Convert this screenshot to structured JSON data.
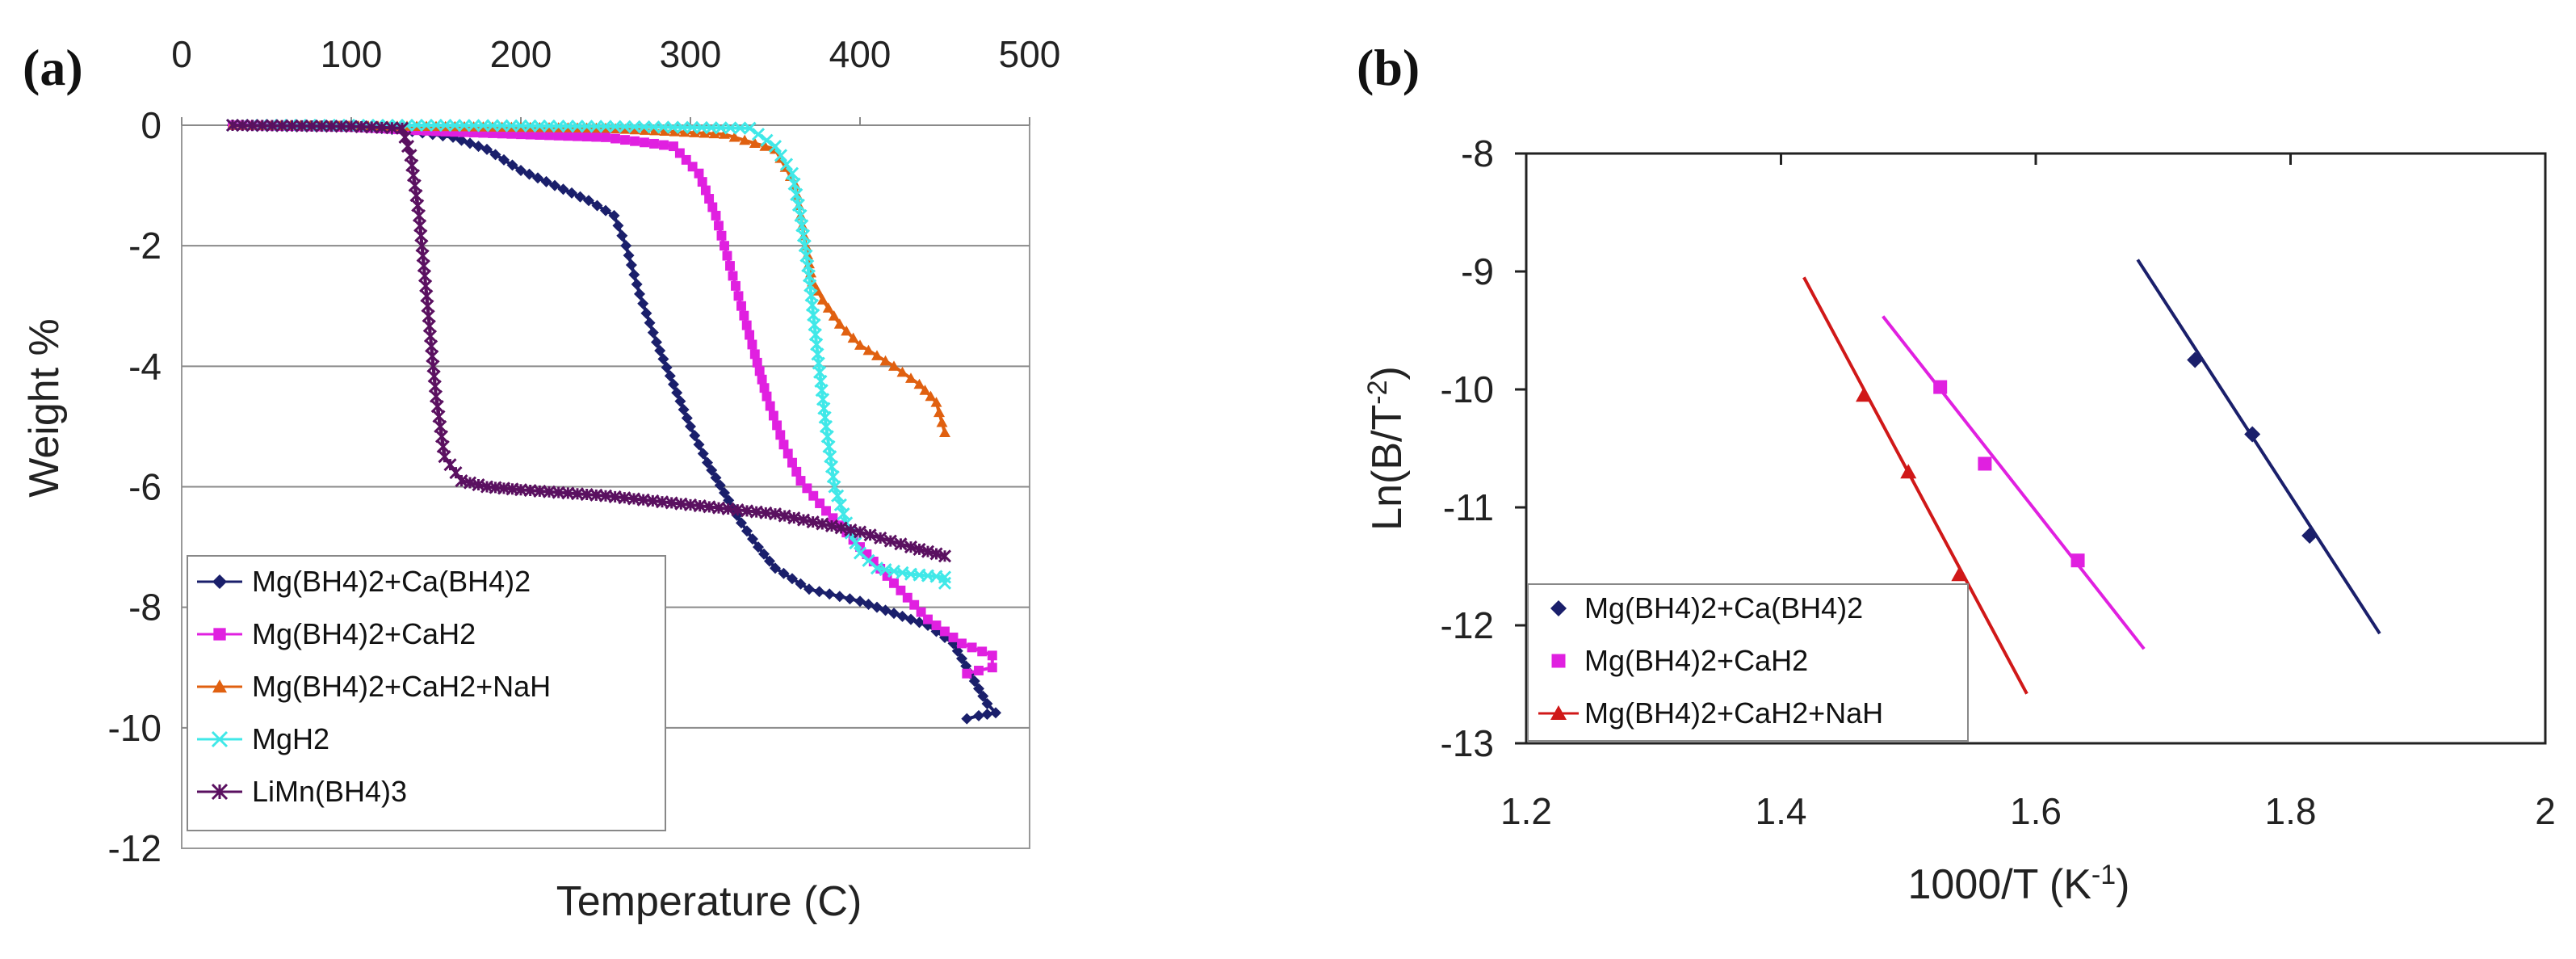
{
  "chart_data": [
    {
      "id": "a",
      "type": "line",
      "panel_label": "(a)",
      "xlabel": "Temperature (C)",
      "ylabel": "Weight %",
      "xlim": [
        0,
        500
      ],
      "ylim": [
        -12,
        0
      ],
      "x_ticks": [
        0,
        100,
        200,
        300,
        400,
        500
      ],
      "x_tick_labels": [
        "0",
        "100",
        "200",
        "300",
        "400",
        "500"
      ],
      "x_axis_position": "top",
      "y_ticks": [
        0,
        -2,
        -4,
        -6,
        -8,
        -10,
        -12
      ],
      "y_tick_labels": [
        "0",
        "-2",
        "-4",
        "-6",
        "-8",
        "-10",
        "-12"
      ],
      "legend_position": "bottom-left",
      "series": [
        {
          "name": "Mg(BH4)2+Ca(BH4)2",
          "color": "#1a1f6b",
          "marker": "diamond",
          "points": [
            [
              30,
              0
            ],
            [
              100,
              -0.02
            ],
            [
              130,
              -0.08
            ],
            [
              160,
              -0.2
            ],
            [
              180,
              -0.4
            ],
            [
              200,
              -0.75
            ],
            [
              220,
              -1.0
            ],
            [
              240,
              -1.25
            ],
            [
              255,
              -1.5
            ],
            [
              262,
              -2.0
            ],
            [
              270,
              -2.8
            ],
            [
              280,
              -3.6
            ],
            [
              290,
              -4.3
            ],
            [
              300,
              -5.0
            ],
            [
              310,
              -5.6
            ],
            [
              320,
              -6.1
            ],
            [
              330,
              -6.6
            ],
            [
              340,
              -7.0
            ],
            [
              350,
              -7.35
            ],
            [
              370,
              -7.7
            ],
            [
              400,
              -7.9
            ],
            [
              420,
              -8.1
            ],
            [
              440,
              -8.3
            ],
            [
              455,
              -8.6
            ],
            [
              465,
              -9.1
            ],
            [
              475,
              -9.6
            ],
            [
              480,
              -9.75
            ],
            [
              470,
              -9.8
            ],
            [
              463,
              -9.85
            ]
          ]
        },
        {
          "name": "Mg(BH4)2+CaH2",
          "color": "#e020e0",
          "marker": "square",
          "points": [
            [
              30,
              0
            ],
            [
              100,
              -0.03
            ],
            [
              150,
              -0.1
            ],
            [
              200,
              -0.15
            ],
            [
              250,
              -0.2
            ],
            [
              290,
              -0.35
            ],
            [
              305,
              -0.8
            ],
            [
              315,
              -1.5
            ],
            [
              325,
              -2.5
            ],
            [
              330,
              -3.0
            ],
            [
              338,
              -3.8
            ],
            [
              345,
              -4.5
            ],
            [
              355,
              -5.3
            ],
            [
              365,
              -5.9
            ],
            [
              380,
              -6.4
            ],
            [
              400,
              -7.0
            ],
            [
              420,
              -7.6
            ],
            [
              440,
              -8.2
            ],
            [
              460,
              -8.6
            ],
            [
              478,
              -8.8
            ],
            [
              478,
              -9.0
            ],
            [
              470,
              -9.05
            ],
            [
              463,
              -9.1
            ]
          ]
        },
        {
          "name": "Mg(BH4)2+CaH2+NaH",
          "color": "#e06010",
          "marker": "triangle",
          "points": [
            [
              30,
              0
            ],
            [
              150,
              -0.02
            ],
            [
              250,
              -0.05
            ],
            [
              320,
              -0.15
            ],
            [
              350,
              -0.4
            ],
            [
              362,
              -1.0
            ],
            [
              368,
              -2.0
            ],
            [
              372,
              -2.6
            ],
            [
              378,
              -2.9
            ],
            [
              388,
              -3.3
            ],
            [
              400,
              -3.65
            ],
            [
              420,
              -4.0
            ],
            [
              435,
              -4.3
            ],
            [
              445,
              -4.6
            ],
            [
              450,
              -5.1
            ]
          ]
        },
        {
          "name": "MgH2",
          "color": "#40e8e8",
          "marker": "x",
          "points": [
            [
              30,
              0
            ],
            [
              150,
              0
            ],
            [
              250,
              -0.02
            ],
            [
              335,
              -0.05
            ],
            [
              350,
              -0.35
            ],
            [
              360,
              -0.8
            ],
            [
              365,
              -1.5
            ],
            [
              370,
              -2.5
            ],
            [
              375,
              -3.8
            ],
            [
              380,
              -5.0
            ],
            [
              385,
              -6.0
            ],
            [
              392,
              -6.6
            ],
            [
              400,
              -7.1
            ],
            [
              410,
              -7.35
            ],
            [
              430,
              -7.45
            ],
            [
              450,
              -7.5
            ],
            [
              450,
              -7.6
            ]
          ]
        },
        {
          "name": "LiMn(BH4)3",
          "color": "#5a1060",
          "marker": "star",
          "points": [
            [
              30,
              0
            ],
            [
              100,
              -0.02
            ],
            [
              130,
              -0.05
            ],
            [
              135,
              -0.5
            ],
            [
              140,
              -1.5
            ],
            [
              145,
              -3.0
            ],
            [
              150,
              -4.5
            ],
            [
              155,
              -5.5
            ],
            [
              165,
              -5.9
            ],
            [
              180,
              -6.0
            ],
            [
              200,
              -6.05
            ],
            [
              250,
              -6.15
            ],
            [
              300,
              -6.3
            ],
            [
              350,
              -6.45
            ],
            [
              400,
              -6.75
            ],
            [
              430,
              -7.0
            ],
            [
              450,
              -7.15
            ]
          ]
        }
      ]
    },
    {
      "id": "b",
      "type": "scatter",
      "panel_label": "(b)",
      "xlabel": "1000/T (K",
      "xlabel_sup": "-1",
      "xlabel_end": ")",
      "ylabel": "Ln(B/T",
      "ylabel_sup": "-2",
      "ylabel_end": ")",
      "xlim": [
        1.2,
        2.0
      ],
      "ylim": [
        -13,
        -8
      ],
      "x_ticks": [
        1.2,
        1.4,
        1.6,
        1.8,
        2.0
      ],
      "x_tick_labels": [
        "1.2",
        "1.4",
        "1.6",
        "1.8",
        "2"
      ],
      "y_ticks": [
        -8,
        -9,
        -10,
        -11,
        -12,
        -13
      ],
      "y_tick_labels": [
        "-8",
        "-9",
        "-10",
        "-11",
        "-12",
        "-13"
      ],
      "legend_position": "bottom-left",
      "series": [
        {
          "name": "Mg(BH4)2+Ca(BH4)2",
          "color": "#1a1f6b",
          "marker": "diamond",
          "points": [
            [
              1.725,
              -9.75
            ],
            [
              1.77,
              -10.38
            ],
            [
              1.815,
              -11.24
            ]
          ],
          "fit_line": [
            [
              1.68,
              -8.9
            ],
            [
              1.87,
              -12.07
            ]
          ]
        },
        {
          "name": "Mg(BH4)2+CaH2",
          "color": "#e020e0",
          "marker": "square",
          "points": [
            [
              1.525,
              -9.98
            ],
            [
              1.56,
              -10.63
            ],
            [
              1.633,
              -11.45
            ]
          ],
          "fit_line": [
            [
              1.48,
              -9.38
            ],
            [
              1.685,
              -12.2
            ]
          ]
        },
        {
          "name": "Mg(BH4)2+CaH2+NaH",
          "color": "#d01818",
          "marker": "triangle",
          "points": [
            [
              1.465,
              -10.05
            ],
            [
              1.5,
              -10.7
            ],
            [
              1.54,
              -11.57
            ]
          ],
          "fit_line": [
            [
              1.418,
              -9.05
            ],
            [
              1.593,
              -12.58
            ]
          ]
        }
      ]
    }
  ]
}
